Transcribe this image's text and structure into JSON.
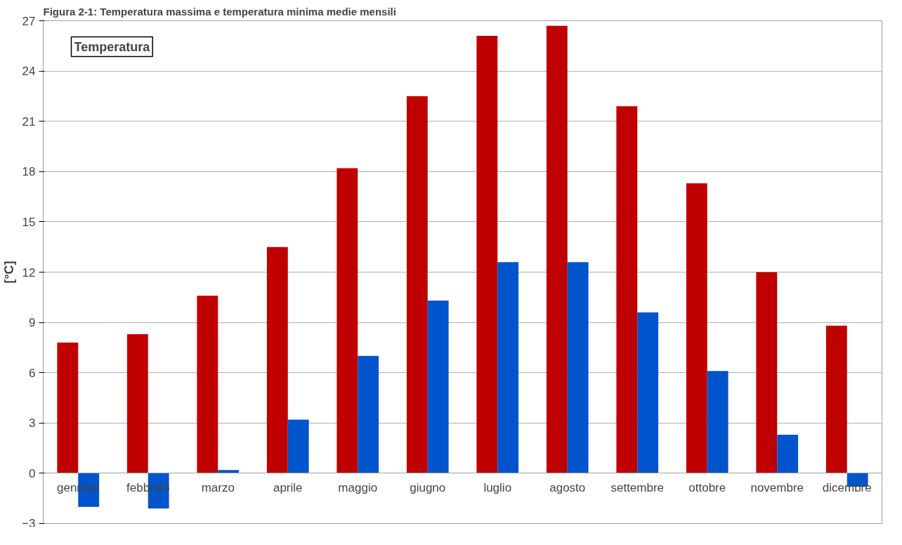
{
  "chart_data": {
    "type": "bar",
    "title": "Figura 2-1: Temperatura massima e temperatura minima medie mensili",
    "ylabel": "[°C]",
    "annotations": [
      "Temperatura"
    ],
    "categories": [
      "gennaio",
      "febbraio",
      "marzo",
      "aprile",
      "maggio",
      "giugno",
      "luglio",
      "agosto",
      "settembre",
      "ottobre",
      "novembre",
      "dicembre"
    ],
    "series": [
      {
        "color": "#c00000",
        "values": [
          7.8,
          8.3,
          10.6,
          13.5,
          18.2,
          22.5,
          26.1,
          26.7,
          21.9,
          17.3,
          12.0,
          8.8
        ]
      },
      {
        "color": "#0055cc",
        "values": [
          -2.0,
          -2.1,
          0.2,
          3.2,
          7.0,
          10.3,
          12.6,
          12.6,
          9.6,
          6.1,
          2.3,
          -0.8
        ]
      }
    ],
    "ylim": [
      -3,
      27
    ],
    "yticks": [
      -3,
      0,
      3,
      6,
      9,
      12,
      15,
      18,
      21,
      24,
      27
    ],
    "grid": "y"
  }
}
